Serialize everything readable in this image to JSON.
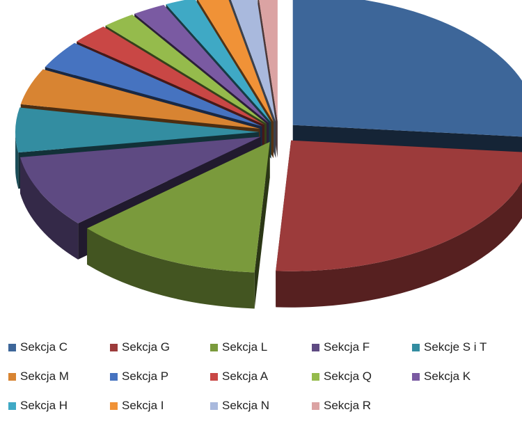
{
  "chart_data": {
    "type": "pie",
    "variant": "3d-exploded",
    "title": "",
    "legend_position": "bottom",
    "series": [
      {
        "name": "Sekcja C",
        "value": 26.5,
        "color": "#3d6699"
      },
      {
        "name": "Sekcja G",
        "value": 24.5,
        "color": "#9c3b3b"
      },
      {
        "name": "Sekcja L",
        "value": 12.5,
        "color": "#7a9a3c"
      },
      {
        "name": "Sekcja F",
        "value": 9.0,
        "color": "#5e4a82"
      },
      {
        "name": "Sekcje S i T",
        "value": 5.5,
        "color": "#338da1"
      },
      {
        "name": "Sekcja M",
        "value": 4.5,
        "color": "#d88432"
      },
      {
        "name": "Sekcja P",
        "value": 3.5,
        "color": "#4673c0"
      },
      {
        "name": "Sekcja A",
        "value": 2.5,
        "color": "#c94745"
      },
      {
        "name": "Sekcja Q",
        "value": 2.2,
        "color": "#95bb4c"
      },
      {
        "name": "Sekcja K",
        "value": 2.2,
        "color": "#7a5aa2"
      },
      {
        "name": "Sekcja H",
        "value": 2.0,
        "color": "#3fa9c5"
      },
      {
        "name": "Sekcja I",
        "value": 2.0,
        "color": "#f09237"
      },
      {
        "name": "Sekcja N",
        "value": 1.8,
        "color": "#a9b9dd"
      },
      {
        "name": "Sekcja R",
        "value": 1.3,
        "color": "#dba3a3"
      }
    ]
  }
}
